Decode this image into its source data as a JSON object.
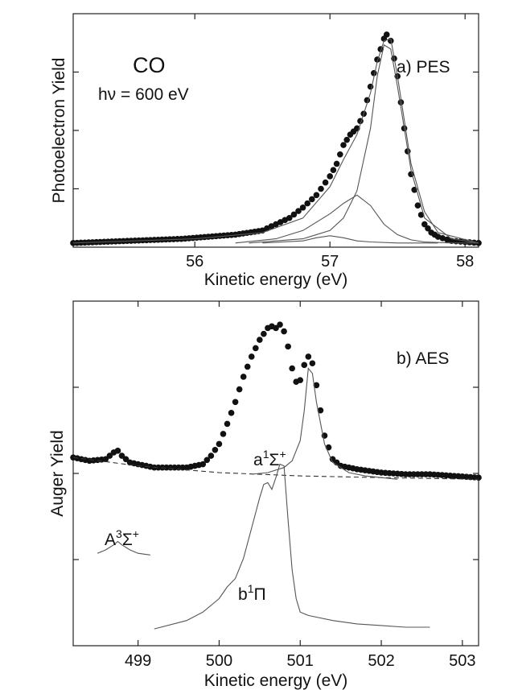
{
  "chart_data": [
    {
      "type": "scatter",
      "panel": "a",
      "xlabel": "Kinetic energy (eV)",
      "ylabel": "Photoelectron Yield",
      "xlim": [
        55.1,
        58.1
      ],
      "ylim": [
        -0.02,
        1.1
      ],
      "x_ticks": [
        56,
        57,
        58
      ],
      "grid": false,
      "legend": "none",
      "annotations": {
        "molecule": "CO",
        "photon_energy": "hν = 600 eV",
        "panel_label": "a) PES"
      },
      "series": [
        {
          "style": "markers",
          "x": [
            55.1,
            55.3,
            55.5,
            55.7,
            55.9,
            56.1,
            56.3,
            56.5,
            56.6,
            56.7,
            56.8,
            56.9,
            57.0,
            57.05,
            57.1,
            57.15,
            57.2,
            57.25,
            57.3,
            57.35,
            57.4,
            57.42,
            57.45,
            57.5,
            57.55,
            57.6,
            57.65,
            57.7,
            57.75,
            57.8,
            57.9,
            58.0,
            58.1
          ],
          "y": [
            0.0,
            0.005,
            0.01,
            0.015,
            0.02,
            0.03,
            0.04,
            0.06,
            0.09,
            0.12,
            0.17,
            0.23,
            0.32,
            0.38,
            0.47,
            0.52,
            0.55,
            0.62,
            0.75,
            0.88,
            0.98,
            1.0,
            0.97,
            0.8,
            0.55,
            0.33,
            0.18,
            0.09,
            0.05,
            0.03,
            0.01,
            0.005,
            0.0
          ]
        },
        {
          "style": "line",
          "x": [
            55.1,
            56.0,
            56.5,
            56.8,
            57.0,
            57.1,
            57.2,
            57.3,
            57.35,
            57.4,
            57.45,
            57.5,
            57.6,
            57.7,
            57.8,
            58.1
          ],
          "y": [
            0.0,
            0.02,
            0.05,
            0.12,
            0.27,
            0.4,
            0.52,
            0.72,
            0.87,
            0.97,
            0.98,
            0.8,
            0.38,
            0.15,
            0.05,
            0.0
          ]
        },
        {
          "style": "line",
          "x": [
            56.3,
            56.6,
            56.8,
            57.0,
            57.1,
            57.2,
            57.3,
            57.4,
            57.5,
            57.6,
            57.7,
            57.9,
            58.1
          ],
          "y": [
            0.0,
            0.02,
            0.06,
            0.14,
            0.19,
            0.23,
            0.18,
            0.09,
            0.04,
            0.015,
            0.005,
            0.0,
            0.0
          ]
        },
        {
          "style": "line",
          "x": [
            56.4,
            56.8,
            57.0,
            57.1,
            57.2,
            57.3,
            57.35,
            57.4,
            57.45,
            57.5,
            57.6,
            57.7,
            57.9,
            58.1
          ],
          "y": [
            0.0,
            0.02,
            0.06,
            0.12,
            0.25,
            0.55,
            0.8,
            0.95,
            0.93,
            0.75,
            0.35,
            0.12,
            0.02,
            0.0
          ]
        },
        {
          "style": "line",
          "x": [
            56.5,
            56.8,
            56.9,
            57.0,
            57.1,
            57.2,
            57.3,
            57.5,
            57.8
          ],
          "y": [
            0.0,
            0.01,
            0.025,
            0.035,
            0.025,
            0.01,
            0.005,
            0.0,
            0.0
          ]
        }
      ]
    },
    {
      "type": "scatter",
      "panel": "b",
      "xlabel": "Kinetic energy (eV)",
      "ylabel": "Auger Yield",
      "xlim": [
        498.2,
        503.2
      ],
      "ylim": [
        -0.1,
        1.95
      ],
      "x_ticks": [
        499,
        500,
        501,
        502,
        503
      ],
      "grid": false,
      "legend": "none",
      "annotations": {
        "panel_label": "b) AES",
        "state_a": "a",
        "state_a_sup": "1",
        "state_a_term": "Σ",
        "state_a_term_sup": "+",
        "state_A": "A",
        "state_A_sup": "3",
        "state_A_term": "Σ",
        "state_A_term_sup": "+",
        "state_b": "b",
        "state_b_sup": "1",
        "state_b_term": "Π"
      },
      "series": [
        {
          "style": "markers",
          "x": [
            498.2,
            498.4,
            498.6,
            498.7,
            498.75,
            498.8,
            498.9,
            499.0,
            499.2,
            499.4,
            499.6,
            499.8,
            499.9,
            500.0,
            500.1,
            500.2,
            500.3,
            500.4,
            500.5,
            500.6,
            500.65,
            500.7,
            500.75,
            500.8,
            500.85,
            500.9,
            500.95,
            501.0,
            501.05,
            501.1,
            501.15,
            501.2,
            501.3,
            501.4,
            501.5,
            501.7,
            502.0,
            502.3,
            502.6,
            502.9,
            503.2
          ],
          "y": [
            1.02,
            1.0,
            1.01,
            1.05,
            1.06,
            1.03,
            0.99,
            0.98,
            0.96,
            0.96,
            0.96,
            0.98,
            1.03,
            1.1,
            1.22,
            1.35,
            1.5,
            1.62,
            1.72,
            1.79,
            1.8,
            1.79,
            1.81,
            1.77,
            1.68,
            1.55,
            1.47,
            1.48,
            1.57,
            1.62,
            1.58,
            1.45,
            1.15,
            1.01,
            0.97,
            0.95,
            0.93,
            0.92,
            0.92,
            0.91,
            0.9
          ]
        },
        {
          "style": "dashed",
          "x": [
            498.2,
            499.0,
            500.0,
            501.0,
            502.0,
            503.2
          ],
          "y": [
            1.02,
            0.97,
            0.93,
            0.91,
            0.9,
            0.89
          ]
        },
        {
          "style": "line",
          "x": [
            500.4,
            500.6,
            500.8,
            500.9,
            501.0,
            501.05,
            501.1,
            501.15,
            501.2,
            501.3,
            501.4,
            501.6,
            501.8,
            502.2
          ],
          "y": [
            0.92,
            0.93,
            0.96,
            1.0,
            1.12,
            1.3,
            1.55,
            1.52,
            1.35,
            1.1,
            0.99,
            0.93,
            0.91,
            0.89
          ]
        },
        {
          "style": "line",
          "x": [
            498.5,
            498.6,
            498.7,
            498.75,
            498.8,
            498.9,
            499.0,
            499.15
          ],
          "y": [
            0.45,
            0.47,
            0.5,
            0.52,
            0.5,
            0.47,
            0.45,
            0.44
          ]
        },
        {
          "style": "line",
          "x": [
            499.2,
            499.6,
            499.8,
            500.0,
            500.1,
            500.2,
            500.3,
            500.4,
            500.5,
            500.55,
            500.6,
            500.65,
            500.7,
            500.75,
            500.8,
            500.85,
            500.9,
            500.95,
            501.0,
            501.1,
            501.2,
            501.4,
            501.7,
            502.0,
            502.3,
            502.6
          ],
          "y": [
            0.0,
            0.05,
            0.1,
            0.18,
            0.25,
            0.3,
            0.42,
            0.6,
            0.78,
            0.86,
            0.87,
            0.83,
            0.9,
            0.98,
            0.97,
            0.65,
            0.35,
            0.18,
            0.1,
            0.08,
            0.07,
            0.05,
            0.03,
            0.02,
            0.01,
            0.01
          ]
        }
      ]
    }
  ]
}
